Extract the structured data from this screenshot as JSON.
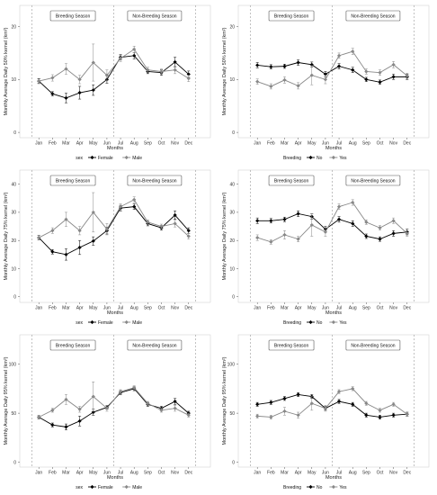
{
  "chart_data": [
    {
      "type": "line",
      "months": [
        "Jan",
        "Feb",
        "Mar",
        "Apr",
        "May",
        "Jun",
        "Jul",
        "Aug",
        "Sep",
        "Oct",
        "Nov",
        "Dec"
      ],
      "xlabel": "Months",
      "ylabel": "Monthly Average Daily 50% kernel (km²)",
      "yticks": [
        0,
        10,
        20
      ],
      "ylim": [
        -1,
        24
      ],
      "season_labels": [
        "Breeding Season",
        "Non-Breeding Season"
      ],
      "legend_title": "sex",
      "series": [
        {
          "name": "Female",
          "marker": "diamond",
          "color": "#000000",
          "values": [
            9.7,
            7.3,
            6.5,
            7.5,
            8.0,
            10.0,
            14.2,
            14.5,
            11.5,
            11.3,
            13.3,
            11.0
          ],
          "err": [
            0.4,
            0.4,
            0.9,
            1.2,
            1.0,
            0.7,
            0.5,
            0.6,
            0.4,
            0.5,
            0.9,
            0.6
          ]
        },
        {
          "name": "Male",
          "marker": "diamond",
          "color": "#888888",
          "values": [
            9.7,
            10.3,
            12.0,
            10.0,
            13.2,
            10.8,
            14.0,
            15.7,
            11.8,
            11.5,
            11.8,
            10.2
          ],
          "err": [
            0.5,
            0.6,
            1.0,
            0.8,
            3.5,
            1.0,
            0.6,
            0.6,
            0.5,
            0.5,
            0.7,
            0.6
          ]
        }
      ]
    },
    {
      "type": "line",
      "months": [
        "Jan",
        "Feb",
        "Mar",
        "Apr",
        "May",
        "Jun",
        "Jul",
        "Aug",
        "Sep",
        "Oct",
        "Nov",
        "Dec"
      ],
      "xlabel": "Months",
      "ylabel": "Monthly Average Daily 50% kernel (km²)",
      "yticks": [
        0,
        10,
        20
      ],
      "ylim": [
        -1,
        24
      ],
      "season_labels": [
        "Breeding Season",
        "Non-Breeding Season"
      ],
      "legend_title": "Breeding",
      "series": [
        {
          "name": "No",
          "marker": "diamond",
          "color": "#000000",
          "values": [
            12.7,
            12.4,
            12.5,
            13.2,
            12.8,
            11.0,
            12.5,
            11.8,
            10.0,
            9.5,
            10.5,
            10.5
          ],
          "err": [
            0.5,
            0.4,
            0.4,
            0.5,
            0.5,
            0.5,
            0.5,
            0.5,
            0.4,
            0.4,
            0.5,
            0.5
          ]
        },
        {
          "name": "Yes",
          "marker": "diamond",
          "color": "#888888",
          "values": [
            9.6,
            8.7,
            9.9,
            8.8,
            10.8,
            10.0,
            14.5,
            15.3,
            11.5,
            11.3,
            12.8,
            10.7
          ],
          "err": [
            0.5,
            0.5,
            0.6,
            0.6,
            1.8,
            0.8,
            0.5,
            0.6,
            0.5,
            0.5,
            0.6,
            0.5
          ]
        }
      ]
    },
    {
      "type": "line",
      "months": [
        "Jan",
        "Feb",
        "Mar",
        "Apr",
        "May",
        "Jun",
        "Jul",
        "Aug",
        "Sep",
        "Oct",
        "Nov",
        "Dec"
      ],
      "xlabel": "Months",
      "ylabel": "Monthly Average Daily 75% kernel (km²)",
      "yticks": [
        0,
        10,
        20,
        30,
        40
      ],
      "ylim": [
        -2,
        45
      ],
      "season_labels": [
        "Breeding Season",
        "Non-Breeding Season"
      ],
      "legend_title": "sex",
      "series": [
        {
          "name": "Female",
          "marker": "diamond",
          "color": "#000000",
          "values": [
            21.0,
            16.0,
            15.0,
            17.5,
            19.8,
            23.5,
            31.5,
            32.0,
            26.0,
            24.5,
            29.0,
            23.5
          ],
          "err": [
            0.8,
            0.8,
            2.0,
            2.5,
            1.5,
            1.2,
            1.0,
            1.0,
            0.8,
            0.8,
            1.5,
            1.0
          ]
        },
        {
          "name": "Male",
          "marker": "diamond",
          "color": "#888888",
          "values": [
            21.0,
            23.5,
            27.5,
            23.5,
            30.0,
            24.0,
            32.0,
            34.5,
            26.5,
            25.0,
            26.0,
            21.5
          ],
          "err": [
            0.8,
            1.0,
            2.5,
            1.5,
            7.0,
            2.0,
            1.0,
            1.0,
            0.8,
            0.8,
            1.2,
            1.0
          ]
        }
      ]
    },
    {
      "type": "line",
      "months": [
        "Jan",
        "Feb",
        "Mar",
        "Apr",
        "May",
        "Jun",
        "Jul",
        "Aug",
        "Sep",
        "Oct",
        "Nov",
        "Dec"
      ],
      "xlabel": "Months",
      "ylabel": "Monthly Average Daily 75% kernel (km²)",
      "yticks": [
        0,
        10,
        20,
        30,
        40
      ],
      "ylim": [
        -2,
        45
      ],
      "season_labels": [
        "Breeding Season",
        "Non-Breeding Season"
      ],
      "legend_title": "Breeding",
      "series": [
        {
          "name": "No",
          "marker": "diamond",
          "color": "#000000",
          "values": [
            27.0,
            27.0,
            27.5,
            29.5,
            28.5,
            24.0,
            27.5,
            26.0,
            21.5,
            20.5,
            22.5,
            23.0
          ],
          "err": [
            1.0,
            0.8,
            0.8,
            1.0,
            1.0,
            1.0,
            1.0,
            1.0,
            0.8,
            0.8,
            1.0,
            1.0
          ]
        },
        {
          "name": "Yes",
          "marker": "diamond",
          "color": "#888888",
          "values": [
            21.0,
            19.5,
            22.0,
            20.5,
            25.5,
            23.0,
            32.0,
            33.5,
            26.5,
            24.5,
            27.0,
            22.5
          ],
          "err": [
            1.0,
            0.8,
            1.5,
            1.0,
            4.0,
            1.5,
            1.0,
            1.0,
            0.8,
            0.8,
            1.0,
            1.0
          ]
        }
      ]
    },
    {
      "type": "line",
      "months": [
        "Jan",
        "Feb",
        "Mar",
        "Apr",
        "May",
        "Jun",
        "Jul",
        "Aug",
        "Sep",
        "Oct",
        "Nov",
        "Dec"
      ],
      "xlabel": "Months",
      "ylabel": "Monthly Average Daily 95% kernel (km²)",
      "yticks": [
        0,
        50,
        100
      ],
      "ylim": [
        -5,
        130
      ],
      "season_labels": [
        "Breeding Season",
        "Non-Breeding Season"
      ],
      "legend_title": "sex",
      "series": [
        {
          "name": "Female",
          "marker": "diamond",
          "color": "#000000",
          "values": [
            46,
            38,
            36,
            42,
            51,
            56,
            71,
            75,
            59,
            55,
            62,
            50
          ],
          "err": [
            2,
            2,
            3,
            5,
            3,
            2,
            2,
            2,
            2,
            2,
            3,
            2
          ]
        },
        {
          "name": "Male",
          "marker": "diamond",
          "color": "#888888",
          "values": [
            46,
            53,
            64,
            54,
            67,
            55,
            72,
            76,
            60,
            53,
            55,
            48
          ],
          "err": [
            2,
            2,
            5,
            3,
            15,
            3,
            2,
            2,
            2,
            2,
            3,
            2
          ]
        }
      ]
    },
    {
      "type": "line",
      "months": [
        "Jan",
        "Feb",
        "Mar",
        "Apr",
        "May",
        "Jun",
        "Jul",
        "Aug",
        "Sep",
        "Oct",
        "Nov",
        "Dec"
      ],
      "xlabel": "Months",
      "ylabel": "Monthly Average Daily 95% kernel (km²)",
      "yticks": [
        0,
        50,
        100
      ],
      "ylim": [
        -5,
        130
      ],
      "season_labels": [
        "Breeding Season",
        "Non-Breeding Season"
      ],
      "legend_title": "Breeding",
      "series": [
        {
          "name": "No",
          "marker": "diamond",
          "color": "#000000",
          "values": [
            59,
            61,
            65,
            69,
            67,
            55,
            62,
            59,
            48,
            46,
            48,
            49
          ],
          "err": [
            2,
            2,
            2,
            2,
            2,
            2,
            2,
            2,
            2,
            2,
            2,
            2
          ]
        },
        {
          "name": "Yes",
          "marker": "diamond",
          "color": "#888888",
          "values": [
            47,
            46,
            52,
            48,
            60,
            55,
            72,
            75,
            60,
            53,
            59,
            49
          ],
          "err": [
            2,
            2,
            4,
            3,
            7,
            3,
            2,
            2,
            2,
            2,
            2,
            2
          ]
        }
      ]
    }
  ]
}
